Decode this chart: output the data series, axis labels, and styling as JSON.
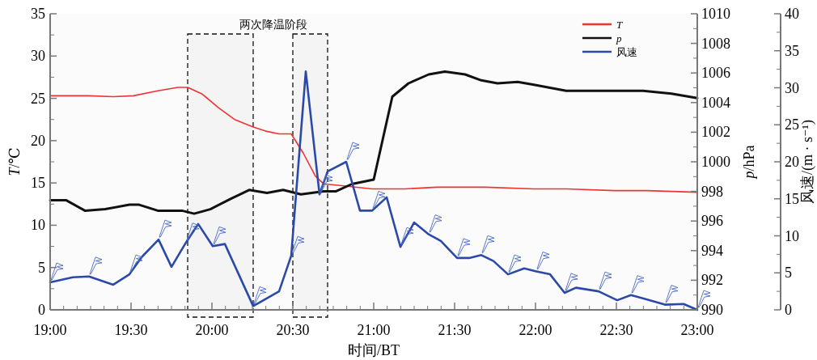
{
  "chart_data": {
    "type": "line",
    "xlabel": "时间/BT",
    "ylabel": "T/℃",
    "y2label": "p/hPa",
    "y3label": "风速/(m · s⁻¹)",
    "xlim": [
      19,
      23
    ],
    "xticks": [
      {
        "value": 19,
        "label": "19:00"
      },
      {
        "value": 19.5,
        "label": "19:30"
      },
      {
        "value": 20,
        "label": "20:00"
      },
      {
        "value": 20.5,
        "label": "20:30"
      },
      {
        "value": 21,
        "label": "21:00"
      },
      {
        "value": 21.5,
        "label": "21:30"
      },
      {
        "value": 22,
        "label": "22:00"
      },
      {
        "value": 22.5,
        "label": "22:30"
      },
      {
        "value": 23,
        "label": "23:00"
      }
    ],
    "ylim": [
      0,
      35
    ],
    "yticks": [
      0,
      5,
      10,
      15,
      20,
      25,
      30,
      35
    ],
    "y2lim": [
      990,
      1010
    ],
    "y2ticks": [
      990,
      992,
      994,
      996,
      998,
      1000,
      1002,
      1004,
      1006,
      1008,
      1010
    ],
    "y3lim": [
      0,
      40
    ],
    "y3ticks": [
      0,
      5,
      10,
      15,
      20,
      25,
      30,
      35,
      40
    ],
    "legend": "top right",
    "annotations": [
      "两次降温阶段"
    ],
    "bands": [
      {
        "axis": "x",
        "from": 19.85,
        "to": 20.255,
        "color": "#111111"
      },
      {
        "axis": "x",
        "from": 20.5,
        "to": 20.715,
        "color": "#111111"
      }
    ],
    "series": [
      {
        "name": "T",
        "color": "#ee3333",
        "x": [
          19.0,
          19.24,
          19.39,
          19.515,
          19.665,
          19.79,
          19.85,
          19.94,
          20.04,
          20.14,
          20.255,
          20.34,
          20.415,
          20.49,
          20.565,
          20.64,
          20.69,
          20.79,
          20.99,
          21.19,
          21.39,
          21.69,
          21.99,
          22.19,
          22.49,
          22.69,
          23.0
        ],
        "values": [
          25.3,
          25.3,
          25.2,
          25.3,
          25.9,
          26.3,
          26.3,
          25.5,
          23.9,
          22.5,
          21.6,
          21.1,
          20.8,
          20.8,
          18.5,
          15.8,
          14.9,
          14.7,
          14.3,
          14.3,
          14.5,
          14.5,
          14.3,
          14.3,
          14.1,
          14.1,
          13.9
        ]
      },
      {
        "name": "p",
        "axis": "y2",
        "color": "#111111",
        "x": [
          19.0,
          19.1,
          19.215,
          19.34,
          19.49,
          19.55,
          19.665,
          19.815,
          19.89,
          19.99,
          20.115,
          20.23,
          20.34,
          20.44,
          20.55,
          20.69,
          20.765,
          20.865,
          21.0,
          21.115,
          21.215,
          21.34,
          21.44,
          21.565,
          21.665,
          21.765,
          21.89,
          21.99,
          22.19,
          22.49,
          22.665,
          22.84,
          23.0
        ],
        "values": [
          997.4,
          997.4,
          996.7,
          996.8,
          997.1,
          997.1,
          996.7,
          996.7,
          996.5,
          996.8,
          997.5,
          998.1,
          997.9,
          998.1,
          997.8,
          998.0,
          998.0,
          998.5,
          998.8,
          1004.4,
          1005.3,
          1005.9,
          1006.1,
          1005.9,
          1005.5,
          1005.3,
          1005.4,
          1005.2,
          1004.8,
          1004.8,
          1004.8,
          1004.6,
          1004.3
        ]
      },
      {
        "name": "风速",
        "axis": "y3",
        "color": "#2b4aa8",
        "x": [
          19.0,
          19.14,
          19.24,
          19.39,
          19.49,
          19.565,
          19.67,
          19.75,
          19.84,
          19.915,
          20.005,
          20.08,
          20.255,
          20.415,
          20.49,
          20.58,
          20.665,
          20.715,
          20.83,
          20.915,
          20.99,
          21.08,
          21.165,
          21.25,
          21.34,
          21.415,
          21.515,
          21.59,
          21.665,
          21.74,
          21.83,
          21.93,
          22.005,
          22.09,
          22.18,
          22.25,
          22.39,
          22.505,
          22.59,
          22.69,
          22.8,
          22.915,
          23.0
        ],
        "values": [
          3.7,
          4.4,
          4.5,
          3.4,
          4.8,
          7.1,
          9.5,
          5.8,
          9.1,
          11.6,
          8.6,
          8.9,
          0.5,
          2.5,
          7.3,
          32.2,
          15.6,
          18.7,
          20.0,
          13.4,
          13.4,
          15.2,
          8.5,
          11.8,
          10.2,
          9.3,
          7.0,
          7.0,
          7.4,
          6.6,
          4.8,
          5.6,
          5.2,
          4.8,
          2.3,
          3.0,
          2.5,
          1.3,
          2.0,
          1.4,
          0.7,
          0.8,
          0
        ]
      }
    ]
  }
}
